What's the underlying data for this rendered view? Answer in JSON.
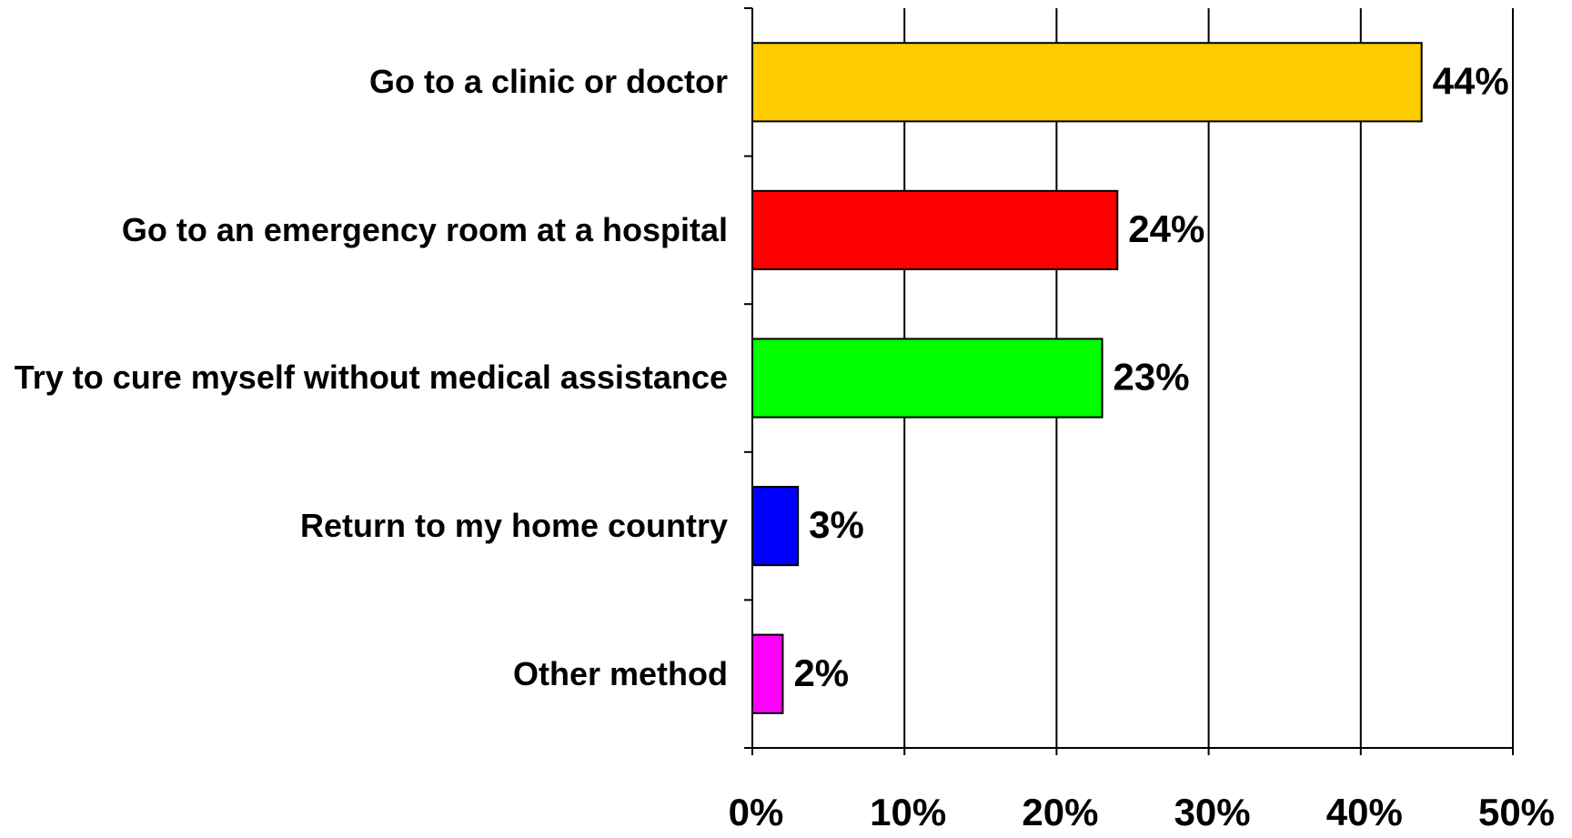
{
  "chart_data": {
    "type": "bar",
    "orientation": "horizontal",
    "categories": [
      "Go to a clinic or doctor",
      "Go to an emergency room at a hospital",
      "Try to cure myself without medical assistance",
      "Return to my home country",
      "Other method"
    ],
    "values": [
      44,
      24,
      23,
      3,
      2
    ],
    "value_labels": [
      "44%",
      "24%",
      "23%",
      "3%",
      "2%"
    ],
    "colors": [
      "#ffcc00",
      "#ff0000",
      "#00ff00",
      "#0000ff",
      "#ff00ff"
    ],
    "xlim": [
      0,
      50
    ],
    "xticks": [
      {
        "value": 0,
        "label": "0%"
      },
      {
        "value": 10,
        "label": "10%"
      },
      {
        "value": 20,
        "label": "20%"
      },
      {
        "value": 30,
        "label": "30%"
      },
      {
        "value": 40,
        "label": "40%"
      },
      {
        "value": 50,
        "label": "50%"
      }
    ],
    "grid": true
  }
}
